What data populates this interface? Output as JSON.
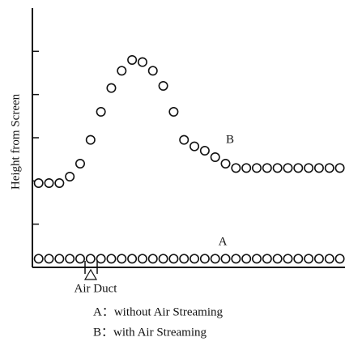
{
  "chart_data": {
    "type": "scatter",
    "ylabel": "Height from Screen",
    "annotations": [
      "Air Duct",
      "A：without Air Streaming",
      "B：with Air Streaming"
    ],
    "x": [
      0,
      1,
      2,
      3,
      4,
      5,
      6,
      7,
      8,
      9,
      10,
      11,
      12,
      13,
      14,
      15,
      16,
      17,
      18,
      19,
      20,
      21,
      22,
      23,
      24,
      25,
      26,
      27,
      28,
      29
    ],
    "xlim": [
      -0.6,
      29.5
    ],
    "ylim": [
      0,
      6
    ],
    "yticks": [
      1,
      2,
      3,
      4,
      5
    ],
    "series": [
      {
        "name": "A",
        "color": "#111111",
        "values": [
          0.2,
          0.2,
          0.2,
          0.2,
          0.2,
          0.2,
          0.2,
          0.2,
          0.2,
          0.2,
          0.2,
          0.2,
          0.2,
          0.2,
          0.2,
          0.2,
          0.2,
          0.2,
          0.2,
          0.2,
          0.2,
          0.2,
          0.2,
          0.2,
          0.2,
          0.2,
          0.2,
          0.2,
          0.2,
          0.2
        ]
      },
      {
        "name": "B",
        "color": "#111111",
        "values": [
          1.95,
          1.95,
          1.95,
          2.1,
          2.4,
          2.95,
          3.6,
          4.15,
          4.55,
          4.8,
          4.75,
          4.55,
          4.2,
          3.6,
          2.95,
          2.8,
          2.7,
          2.55,
          2.4,
          2.3,
          2.3,
          2.3,
          2.3,
          2.3,
          2.3,
          2.3,
          2.3,
          2.3,
          2.3,
          2.3
        ]
      }
    ]
  }
}
